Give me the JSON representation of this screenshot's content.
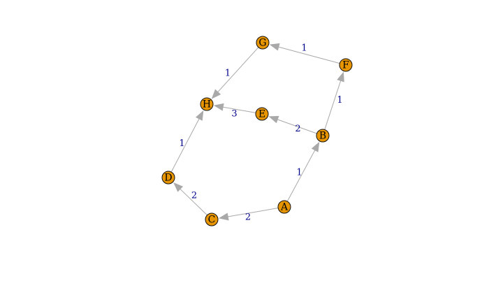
{
  "colors": {
    "node_fill": "#e69500",
    "node_stroke": "#111111",
    "edge_stroke": "#a9a9a9",
    "edge_label": "#00008b",
    "background": "#ffffff"
  },
  "graph": {
    "directed": true,
    "nodes": [
      {
        "id": "A",
        "label": "A"
      },
      {
        "id": "B",
        "label": "B"
      },
      {
        "id": "C",
        "label": "C"
      },
      {
        "id": "D",
        "label": "D"
      },
      {
        "id": "E",
        "label": "E"
      },
      {
        "id": "F",
        "label": "F"
      },
      {
        "id": "G",
        "label": "G"
      },
      {
        "id": "H",
        "label": "H"
      }
    ],
    "edges": [
      {
        "from": "A",
        "to": "B",
        "weight": "1"
      },
      {
        "from": "A",
        "to": "C",
        "weight": "2"
      },
      {
        "from": "C",
        "to": "D",
        "weight": "2"
      },
      {
        "from": "D",
        "to": "H",
        "weight": "1"
      },
      {
        "from": "B",
        "to": "E",
        "weight": "2"
      },
      {
        "from": "E",
        "to": "H",
        "weight": "3"
      },
      {
        "from": "B",
        "to": "F",
        "weight": "1"
      },
      {
        "from": "F",
        "to": "G",
        "weight": "1"
      },
      {
        "from": "G",
        "to": "H",
        "weight": "1"
      }
    ]
  }
}
